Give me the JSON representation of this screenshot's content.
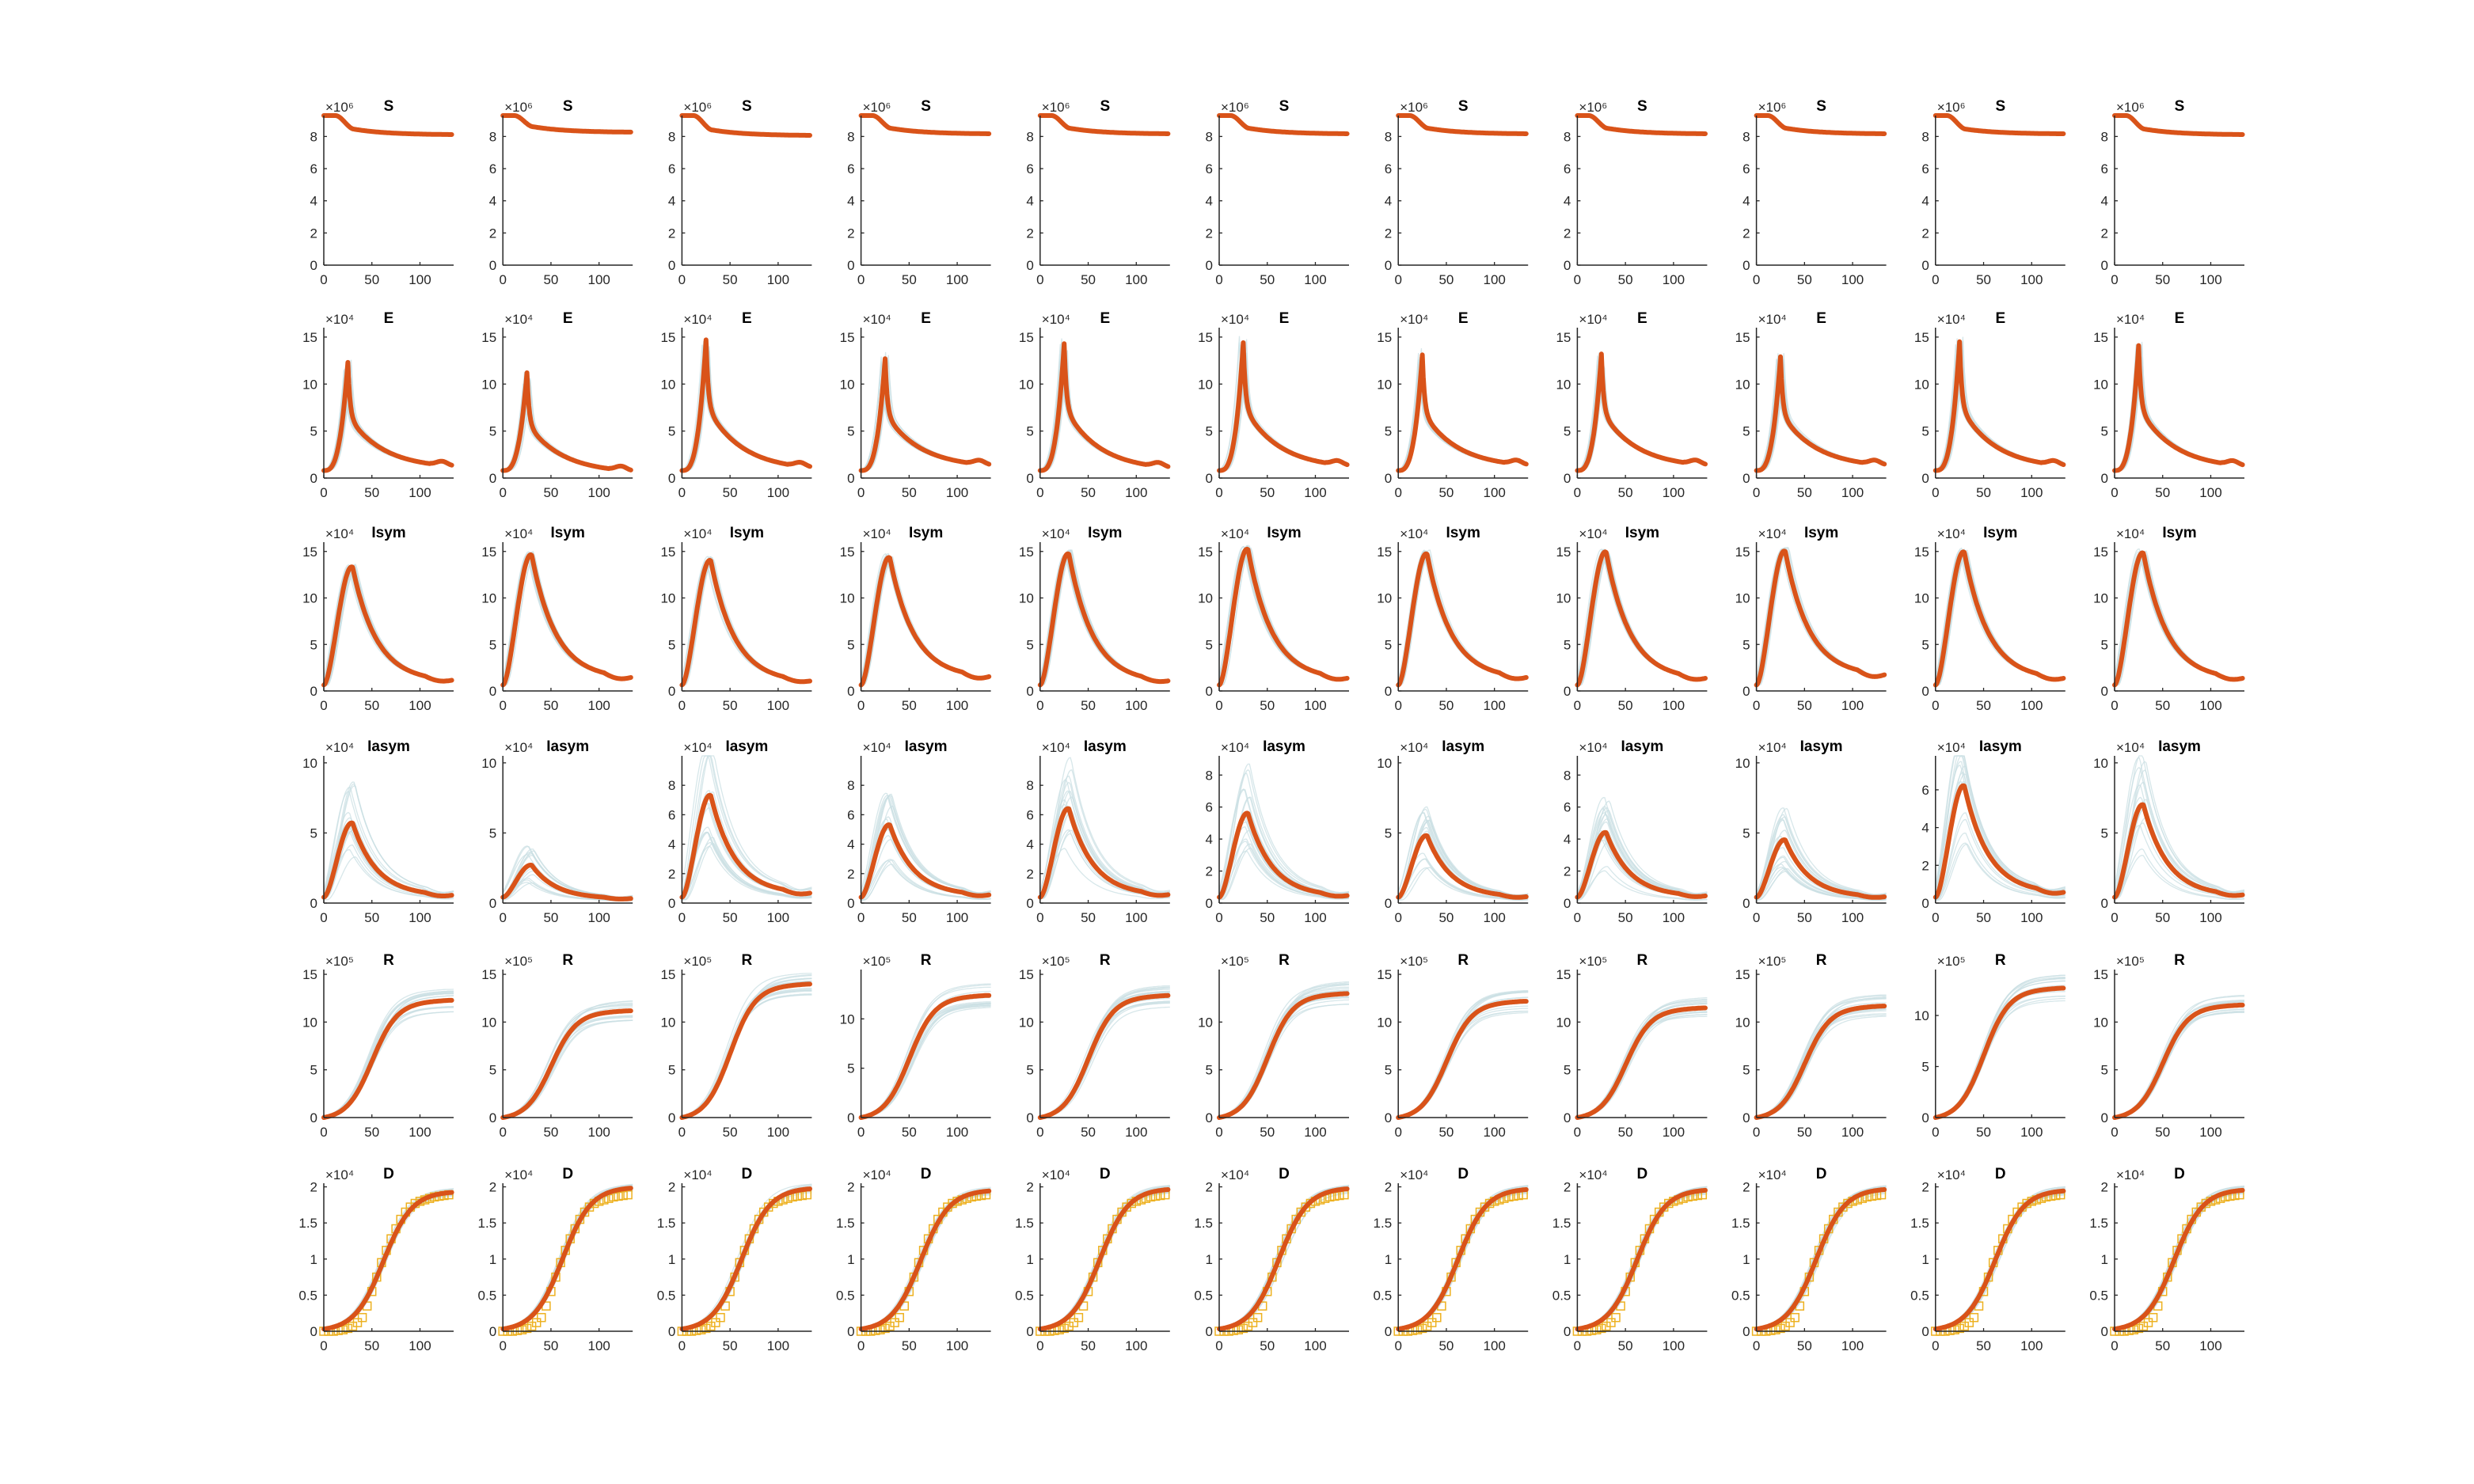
{
  "figure": {
    "colors": {
      "main": "#d95319",
      "ensemble": "#c9dfe3",
      "data": "#edb120",
      "axis": "#262626"
    }
  },
  "chart_data": {
    "type": "line",
    "layout": {
      "rows": 6,
      "cols": 11
    },
    "x": {
      "ticks": [
        0,
        50,
        100
      ],
      "tick_labels": [
        "0",
        "50",
        "100"
      ],
      "xlim": [
        0,
        135
      ]
    },
    "legend": "none",
    "grid": false,
    "compartments": [
      {
        "id": "S",
        "title": "S",
        "exponent_label": "×10⁶",
        "shape": "sdecline",
        "ylim": [
          0,
          9.3
        ],
        "yticks": [
          0,
          2,
          4,
          6,
          8
        ],
        "ytick_labels": [
          "0",
          "2",
          "4",
          "6",
          "8"
        ],
        "panels": [
          {
            "start": 9.3,
            "peak": 8.45,
            "end": 8.1
          },
          {
            "start": 9.3,
            "peak": 8.6,
            "end": 8.25
          },
          {
            "start": 9.3,
            "peak": 8.4,
            "end": 8.05
          },
          {
            "start": 9.3,
            "peak": 8.5,
            "end": 8.15
          },
          {
            "start": 9.3,
            "peak": 8.5,
            "end": 8.15
          },
          {
            "start": 9.3,
            "peak": 8.5,
            "end": 8.15
          },
          {
            "start": 9.3,
            "peak": 8.5,
            "end": 8.15
          },
          {
            "start": 9.3,
            "peak": 8.5,
            "end": 8.15
          },
          {
            "start": 9.3,
            "peak": 8.5,
            "end": 8.15
          },
          {
            "start": 9.3,
            "peak": 8.45,
            "end": 8.15
          },
          {
            "start": 9.3,
            "peak": 8.45,
            "end": 8.1
          }
        ]
      },
      {
        "id": "E",
        "title": "E",
        "exponent_label": "×10⁴",
        "shape": "spike",
        "ylim": [
          0,
          16
        ],
        "yticks": [
          0,
          5,
          10,
          15
        ],
        "ytick_labels": [
          "0",
          "5",
          "10",
          "15"
        ],
        "panels": [
          {
            "peak": 12.3,
            "end": 1.0
          },
          {
            "peak": 11.2,
            "end": 0.5
          },
          {
            "peak": 14.7,
            "end": 0.8
          },
          {
            "peak": 12.7,
            "end": 1.1
          },
          {
            "peak": 14.3,
            "end": 0.8
          },
          {
            "peak": 14.4,
            "end": 1.0
          },
          {
            "peak": 13.1,
            "end": 1.1
          },
          {
            "peak": 13.2,
            "end": 1.1
          },
          {
            "peak": 12.9,
            "end": 1.1
          },
          {
            "peak": 14.5,
            "end": 1.0
          },
          {
            "peak": 14.1,
            "end": 1.0
          }
        ]
      },
      {
        "id": "Isym",
        "title": "Isym",
        "exponent_label": "×10⁴",
        "shape": "hump",
        "ylim": [
          0,
          16
        ],
        "yticks": [
          0,
          5,
          10,
          15
        ],
        "ytick_labels": [
          "0",
          "5",
          "10",
          "15"
        ],
        "panels": [
          {
            "peak": 13.3,
            "end": 1.0
          },
          {
            "peak": 14.6,
            "end": 1.3
          },
          {
            "peak": 14.0,
            "end": 0.9
          },
          {
            "peak": 14.3,
            "end": 1.4
          },
          {
            "peak": 14.7,
            "end": 0.9
          },
          {
            "peak": 15.2,
            "end": 1.2
          },
          {
            "peak": 14.7,
            "end": 1.3
          },
          {
            "peak": 14.9,
            "end": 1.2
          },
          {
            "peak": 15.0,
            "end": 1.6
          },
          {
            "peak": 14.9,
            "end": 1.2
          },
          {
            "peak": 14.8,
            "end": 1.2
          }
        ]
      },
      {
        "id": "Iasym",
        "title": "Iasym",
        "exponent_label": "×10⁴",
        "shape": "hump",
        "panels": [
          {
            "peak": 5.7,
            "end": 0.5,
            "ylim": [
              0,
              10.5
            ],
            "yticks": [
              0,
              5,
              10
            ],
            "ytick_labels": [
              "0",
              "5",
              "10"
            ]
          },
          {
            "peak": 2.7,
            "end": 0.3,
            "ylim": [
              0,
              10.5
            ],
            "yticks": [
              0,
              5,
              10
            ],
            "ytick_labels": [
              "0",
              "5",
              "10"
            ]
          },
          {
            "peak": 7.3,
            "end": 0.6,
            "ylim": [
              0,
              10
            ],
            "yticks": [
              0,
              2,
              4,
              6,
              8
            ],
            "ytick_labels": [
              "0",
              "2",
              "4",
              "6",
              "8"
            ]
          },
          {
            "peak": 5.3,
            "end": 0.5,
            "ylim": [
              0,
              10
            ],
            "yticks": [
              0,
              2,
              4,
              6,
              8
            ],
            "ytick_labels": [
              "0",
              "2",
              "4",
              "6",
              "8"
            ]
          },
          {
            "peak": 6.4,
            "end": 0.5,
            "ylim": [
              0,
              10
            ],
            "yticks": [
              0,
              2,
              4,
              6,
              8
            ],
            "ytick_labels": [
              "0",
              "2",
              "4",
              "6",
              "8"
            ]
          },
          {
            "peak": 5.6,
            "end": 0.4,
            "ylim": [
              0,
              9.2
            ],
            "yticks": [
              0,
              2,
              4,
              6,
              8
            ],
            "ytick_labels": [
              "0",
              "2",
              "4",
              "6",
              "8"
            ]
          },
          {
            "peak": 4.8,
            "end": 0.4,
            "ylim": [
              0,
              10.5
            ],
            "yticks": [
              0,
              5,
              10
            ],
            "ytick_labels": [
              "0",
              "5",
              "10"
            ]
          },
          {
            "peak": 4.4,
            "end": 0.4,
            "ylim": [
              0,
              9.2
            ],
            "yticks": [
              0,
              2,
              4,
              6,
              8
            ],
            "ytick_labels": [
              "0",
              "2",
              "4",
              "6",
              "8"
            ]
          },
          {
            "peak": 4.5,
            "end": 0.4,
            "ylim": [
              0,
              10.5
            ],
            "yticks": [
              0,
              5,
              10
            ],
            "ytick_labels": [
              "0",
              "5",
              "10"
            ]
          },
          {
            "peak": 6.2,
            "end": 0.5,
            "ylim": [
              0,
              7.8
            ],
            "yticks": [
              0,
              2,
              4,
              6
            ],
            "ytick_labels": [
              "0",
              "2",
              "4",
              "6"
            ]
          },
          {
            "peak": 7.0,
            "end": 0.5,
            "ylim": [
              0,
              10.5
            ],
            "yticks": [
              0,
              5,
              10
            ],
            "ytick_labels": [
              "0",
              "5",
              "10"
            ]
          }
        ]
      },
      {
        "id": "R",
        "title": "R",
        "exponent_label": "×10⁵",
        "shape": "sigmoid",
        "panels": [
          {
            "end": 12.3,
            "ylim": [
              0,
              15.5
            ],
            "yticks": [
              0,
              5,
              10,
              15
            ],
            "ytick_labels": [
              "0",
              "5",
              "10",
              "15"
            ]
          },
          {
            "end": 11.2,
            "ylim": [
              0,
              15.5
            ],
            "yticks": [
              0,
              5,
              10,
              15
            ],
            "ytick_labels": [
              "0",
              "5",
              "10",
              "15"
            ]
          },
          {
            "end": 14.0,
            "ylim": [
              0,
              15.5
            ],
            "yticks": [
              0,
              5,
              10,
              15
            ],
            "ytick_labels": [
              "0",
              "5",
              "10",
              "15"
            ]
          },
          {
            "end": 12.4,
            "ylim": [
              0,
              15
            ],
            "yticks": [
              0,
              5,
              10
            ],
            "ytick_labels": [
              "0",
              "5",
              "10"
            ]
          },
          {
            "end": 12.8,
            "ylim": [
              0,
              15.5
            ],
            "yticks": [
              0,
              5,
              10,
              15
            ],
            "ytick_labels": [
              "0",
              "5",
              "10",
              "15"
            ]
          },
          {
            "end": 13.0,
            "ylim": [
              0,
              15.5
            ],
            "yticks": [
              0,
              5,
              10
            ],
            "ytick_labels": [
              "0",
              "5",
              "10"
            ]
          },
          {
            "end": 12.2,
            "ylim": [
              0,
              15.5
            ],
            "yticks": [
              0,
              5,
              10,
              15
            ],
            "ytick_labels": [
              "0",
              "5",
              "10",
              "15"
            ]
          },
          {
            "end": 11.5,
            "ylim": [
              0,
              15.5
            ],
            "yticks": [
              0,
              5,
              10,
              15
            ],
            "ytick_labels": [
              "0",
              "5",
              "10",
              "15"
            ]
          },
          {
            "end": 11.7,
            "ylim": [
              0,
              15.5
            ],
            "yticks": [
              0,
              5,
              10,
              15
            ],
            "ytick_labels": [
              "0",
              "5",
              "10",
              "15"
            ]
          },
          {
            "end": 12.7,
            "ylim": [
              0,
              14.5
            ],
            "yticks": [
              0,
              5,
              10
            ],
            "ytick_labels": [
              "0",
              "5",
              "10"
            ]
          },
          {
            "end": 11.8,
            "ylim": [
              0,
              15.5
            ],
            "yticks": [
              0,
              5,
              10,
              15
            ],
            "ytick_labels": [
              "0",
              "5",
              "10",
              "15"
            ]
          }
        ]
      },
      {
        "id": "D",
        "title": "D",
        "exponent_label": "×10⁴",
        "shape": "sigmoid_d",
        "ylim": [
          0,
          2.05
        ],
        "yticks": [
          0,
          0.5,
          1,
          1.5,
          2
        ],
        "ytick_labels": [
          "0",
          "0.5",
          "1",
          "1.5",
          "2"
        ],
        "observed": {
          "t": [
            0,
            5,
            10,
            15,
            20,
            25,
            30,
            35,
            40,
            45,
            50,
            55,
            60,
            65,
            70,
            75,
            80,
            85,
            90,
            95,
            100,
            105,
            110,
            115,
            120,
            125,
            130
          ],
          "y": [
            0.0,
            0.0,
            0.0,
            0.01,
            0.02,
            0.04,
            0.07,
            0.12,
            0.19,
            0.35,
            0.55,
            0.75,
            0.95,
            1.12,
            1.28,
            1.42,
            1.55,
            1.65,
            1.72,
            1.77,
            1.8,
            1.82,
            1.84,
            1.86,
            1.87,
            1.88,
            1.89
          ]
        },
        "panels": [
          {
            "end": 1.94
          },
          {
            "end": 2.0
          },
          {
            "end": 1.99
          },
          {
            "end": 1.96
          },
          {
            "end": 1.98
          },
          {
            "end": 1.99
          },
          {
            "end": 1.98
          },
          {
            "end": 1.97
          },
          {
            "end": 1.98
          },
          {
            "end": 1.96
          },
          {
            "end": 1.97
          }
        ]
      }
    ]
  }
}
